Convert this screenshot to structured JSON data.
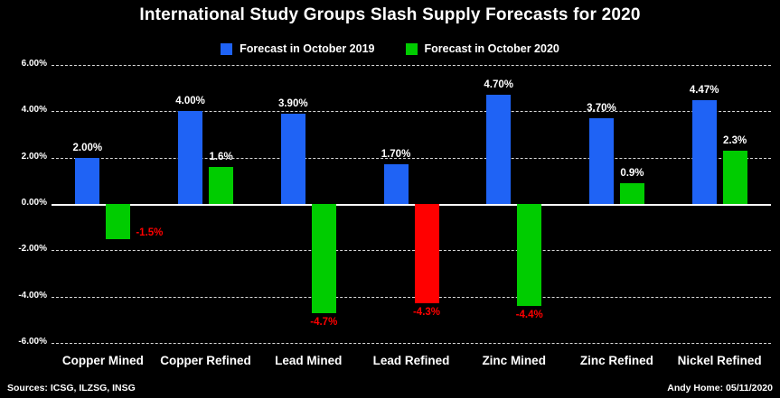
{
  "title": "International Study Groups Slash Supply Forecasts for 2020",
  "legend": {
    "items": [
      {
        "label": "Forecast in October 2019",
        "color": "#1f63f5"
      },
      {
        "label": "Forecast in October 2020",
        "color": "#00cc00"
      }
    ]
  },
  "footer": {
    "sources": "Sources: ICSG, ILZSG, INSG",
    "credit": "Andy Home: 05/11/2020"
  },
  "chart_data": {
    "type": "bar",
    "title": "International Study Groups Slash Supply Forecasts for 2020",
    "categories": [
      "Copper Mined",
      "Copper Refined",
      "Lead Mined",
      "Lead Refined",
      "Zinc Mined",
      "Zinc Refined",
      "Nickel Refined"
    ],
    "series": [
      {
        "name": "Forecast in October 2019",
        "color": "#1f63f5",
        "values": [
          2.0,
          4.0,
          3.9,
          1.7,
          4.7,
          3.7,
          4.47
        ],
        "labels": [
          "2.00%",
          "4.00%",
          "3.90%",
          "1.70%",
          "4.70%",
          "3.70%",
          "4.47%"
        ]
      },
      {
        "name": "Forecast in October 2020",
        "color": "#00cc00",
        "values": [
          -1.5,
          1.6,
          -4.7,
          -4.3,
          -4.4,
          0.9,
          2.3
        ],
        "labels": [
          "-1.5%",
          "1.6%",
          "-4.7%",
          "-4.3%",
          "-4.4%",
          "0.9%",
          "2.3%"
        ],
        "point_color_overrides": {
          "3": "#ff0000"
        },
        "label_placement_overrides": {
          "0": "right"
        }
      }
    ],
    "ylim": [
      -6,
      6
    ],
    "yticks": [
      6,
      4,
      2,
      0,
      -2,
      -4,
      -6
    ],
    "ytick_labels": [
      "6.00%",
      "4.00%",
      "2.00%",
      "0.00%",
      "-2.00%",
      "-4.00%",
      "-6.00%"
    ],
    "grid": "dashed-horizontal",
    "background": "#000000",
    "positive_label_color": "#ffffff",
    "negative_label_color": "#ff0000",
    "legend_position": "top"
  }
}
